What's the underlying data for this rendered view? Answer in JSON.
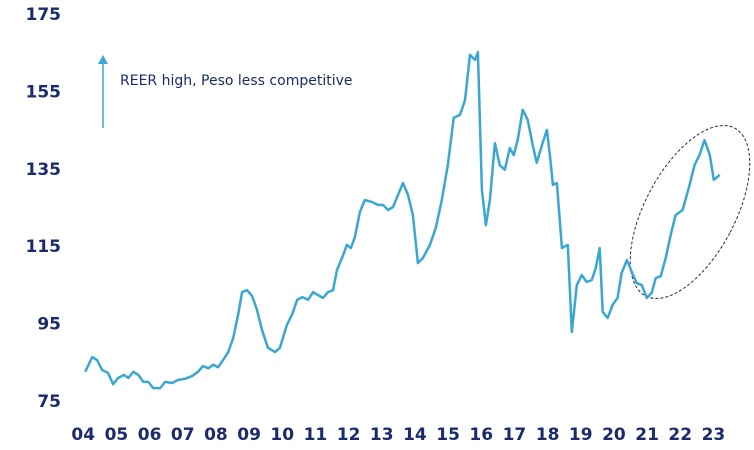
{
  "chart_data": {
    "type": "line",
    "annotation": "REER high, Peso less competitive",
    "color": "#3aa7d3",
    "x": [
      4.06,
      4.27,
      4.42,
      4.57,
      4.75,
      4.9,
      5.05,
      5.23,
      5.36,
      5.51,
      5.66,
      5.81,
      5.96,
      6.11,
      6.32,
      6.47,
      6.68,
      6.86,
      7.07,
      7.28,
      7.46,
      7.61,
      7.77,
      7.92,
      8.07,
      8.22,
      8.37,
      8.52,
      8.67,
      8.79,
      8.94,
      9.09,
      9.24,
      9.39,
      9.57,
      9.78,
      9.93,
      10.14,
      10.3,
      10.45,
      10.6,
      10.78,
      10.93,
      11.08,
      11.23,
      11.38,
      11.53,
      11.65,
      11.8,
      11.95,
      12.07,
      12.19,
      12.34,
      12.49,
      12.7,
      12.89,
      13.04,
      13.19,
      13.34,
      13.49,
      13.64,
      13.79,
      13.94,
      14.09,
      14.24,
      14.45,
      14.63,
      14.81,
      14.99,
      15.17,
      15.36,
      15.51,
      15.66,
      15.81,
      15.9,
      16.02,
      16.14,
      16.26,
      16.41,
      16.56,
      16.71,
      16.86,
      16.98,
      17.1,
      17.25,
      17.4,
      17.55,
      17.67,
      17.83,
      17.98,
      18.07,
      18.16,
      18.28,
      18.43,
      18.61,
      18.73,
      18.88,
      19.03,
      19.18,
      19.33,
      19.45,
      19.57,
      19.66,
      19.81,
      19.96,
      20.11,
      20.23,
      20.39,
      20.54,
      20.69,
      20.84,
      20.99,
      21.14,
      21.26,
      21.41,
      21.56,
      21.71,
      21.86,
      22.07,
      22.28,
      22.43,
      22.58,
      22.73,
      22.89,
      23.01,
      23.19
    ],
    "values": [
      82.8,
      86.6,
      85.8,
      83.3,
      82.5,
      79.6,
      81.2,
      82,
      81.2,
      82.8,
      82,
      80.2,
      80.2,
      78.6,
      78.6,
      80.2,
      79.9,
      80.7,
      81,
      81.7,
      82.8,
      84.3,
      83.7,
      84.6,
      84,
      85.9,
      87.9,
      91.5,
      97.5,
      103.4,
      103.9,
      102.4,
      98.8,
      93.6,
      89,
      87.9,
      89,
      94.9,
      97.7,
      101.4,
      102.1,
      101.4,
      103.4,
      102.6,
      101.9,
      103.4,
      103.9,
      109.1,
      112.2,
      115.6,
      114.8,
      117.6,
      124.1,
      127.2,
      126.7,
      125.9,
      125.9,
      124.6,
      125.4,
      128.5,
      131.6,
      128.5,
      123.3,
      110.9,
      112.2,
      115.6,
      120,
      127.2,
      136.2,
      148.4,
      149.2,
      153,
      164.7,
      163.4,
      165.4,
      129.8,
      120.7,
      127.2,
      141.9,
      136.2,
      135,
      140.6,
      138.8,
      142.7,
      150.5,
      147.9,
      141.4,
      136.8,
      141.4,
      145.3,
      138.8,
      131.1,
      131.6,
      114.8,
      115.6,
      93.1,
      105.2,
      107.8,
      106,
      106.5,
      109.6,
      114.8,
      98.3,
      96.7,
      100.1,
      101.9,
      108.3,
      111.7,
      108.6,
      105.7,
      105.2,
      101.9,
      103.2,
      107,
      107.5,
      112.2,
      118.2,
      123.3,
      124.6,
      131.1,
      136.2,
      138.8,
      142.7,
      138.8,
      132.4,
      133.7
    ],
    "xlim": [
      3.45,
      23.65
    ],
    "xticks": [
      {
        "value": 4,
        "label": "04"
      },
      {
        "value": 5,
        "label": "05"
      },
      {
        "value": 6,
        "label": "06"
      },
      {
        "value": 7,
        "label": "07"
      },
      {
        "value": 8,
        "label": "08"
      },
      {
        "value": 9,
        "label": "09"
      },
      10,
      11,
      12,
      13,
      14,
      15,
      16,
      17,
      18,
      19,
      20,
      21,
      22,
      23
    ],
    "ylim": [
      75,
      175
    ],
    "yticks": [
      75,
      95,
      115,
      135,
      155,
      175
    ]
  }
}
